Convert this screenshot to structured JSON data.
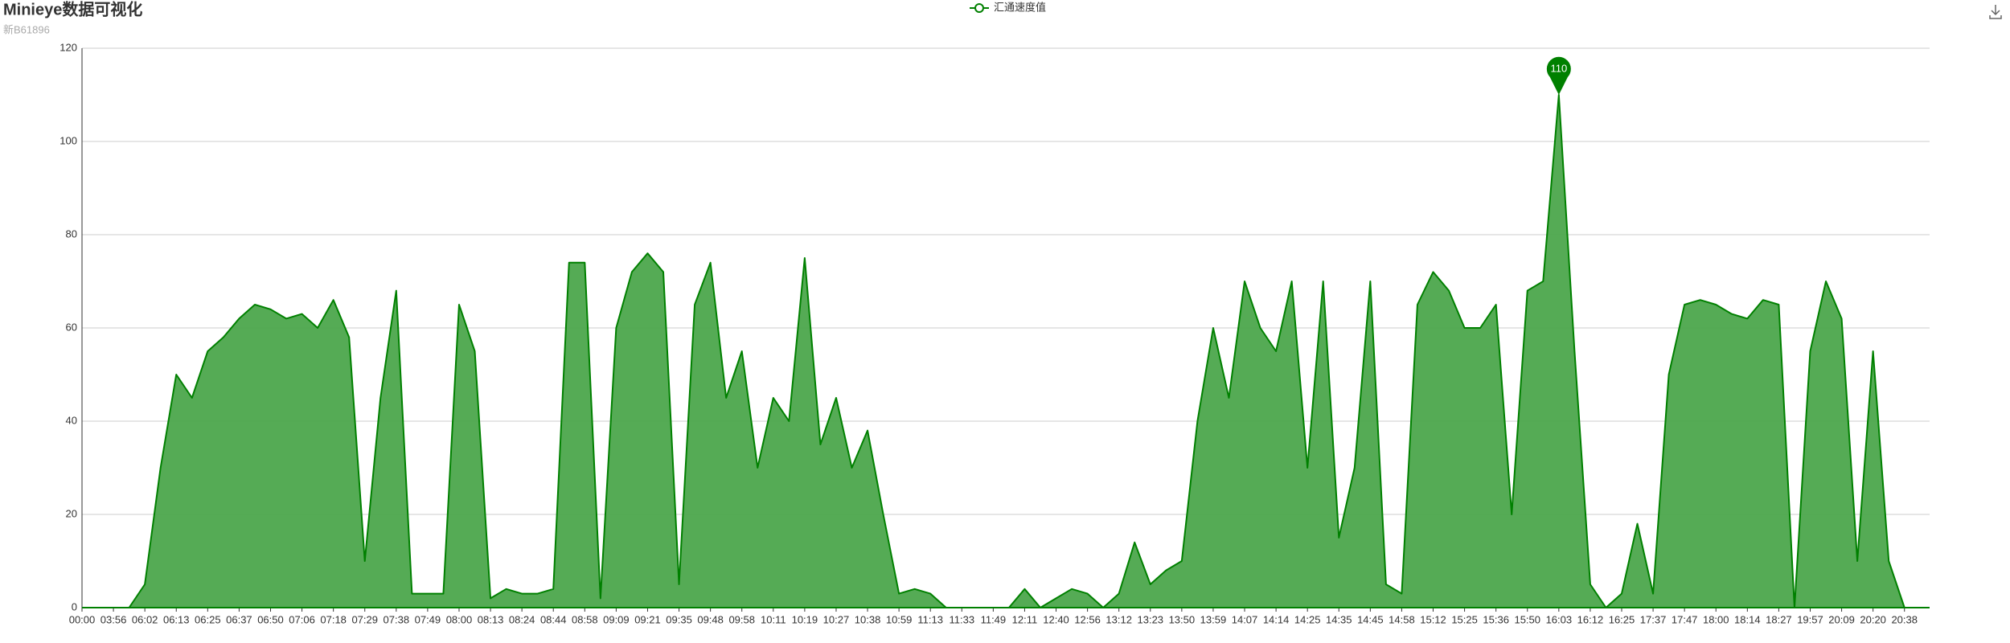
{
  "chart_data": {
    "type": "area",
    "title": "Minieye数据可视化",
    "subtitle": "新B61896",
    "categories": [
      "00:00",
      null,
      "03:56",
      null,
      "06:02",
      null,
      "06:13",
      null,
      "06:25",
      null,
      "06:37",
      null,
      "06:50",
      null,
      "07:06",
      null,
      "07:18",
      null,
      "07:29",
      null,
      "07:38",
      null,
      "07:49",
      null,
      "08:00",
      null,
      "08:13",
      null,
      "08:24",
      null,
      "08:44",
      null,
      "08:58",
      null,
      "09:09",
      null,
      "09:21",
      null,
      "09:35",
      null,
      "09:48",
      null,
      "09:58",
      null,
      "10:11",
      null,
      "10:19",
      null,
      "10:27",
      null,
      "10:38",
      null,
      "10:59",
      null,
      "11:13",
      null,
      "11:33",
      null,
      "11:49",
      null,
      "12:11",
      null,
      "12:40",
      null,
      "12:56",
      null,
      "13:12",
      null,
      "13:23",
      null,
      "13:50",
      null,
      "13:59",
      null,
      "14:07",
      null,
      "14:14",
      null,
      "14:25",
      null,
      "14:35",
      null,
      "14:45",
      null,
      "14:58",
      null,
      "15:12",
      null,
      "15:25",
      null,
      "15:36",
      null,
      "15:50",
      null,
      "16:03",
      null,
      "16:12",
      null,
      "16:25",
      null,
      "17:37",
      null,
      "17:47",
      null,
      "18:00",
      null,
      "18:14",
      null,
      "18:27",
      null,
      "19:57",
      null,
      "20:09",
      null,
      "20:20",
      null,
      "20:38",
      null
    ],
    "series": [
      {
        "name": "汇通速度值",
        "color": "#008000",
        "area_color": "#4ca64c",
        "values": [
          0,
          0,
          0,
          0,
          5,
          30,
          50,
          45,
          55,
          58,
          62,
          65,
          64,
          62,
          63,
          60,
          66,
          58,
          10,
          45,
          68,
          3,
          3,
          3,
          65,
          55,
          2,
          4,
          3,
          3,
          4,
          74,
          74,
          2,
          60,
          72,
          76,
          72,
          5,
          65,
          74,
          45,
          55,
          30,
          45,
          40,
          75,
          35,
          45,
          30,
          38,
          20,
          3,
          4,
          3,
          0,
          0,
          0,
          0,
          0,
          4,
          0,
          2,
          4,
          3,
          0,
          3,
          14,
          5,
          8,
          10,
          40,
          60,
          45,
          70,
          60,
          55,
          70,
          30,
          70,
          15,
          30,
          70,
          5,
          3,
          65,
          72,
          68,
          60,
          60,
          65,
          20,
          68,
          70,
          110,
          55,
          5,
          0,
          3,
          18,
          3,
          50,
          65,
          66,
          65,
          63,
          62,
          66,
          65,
          0,
          55,
          70,
          62,
          10,
          55,
          10,
          0,
          0
        ]
      }
    ],
    "ylim": [
      0,
      120
    ],
    "yticks": [
      0,
      20,
      40,
      60,
      80,
      100,
      120
    ],
    "grid": true,
    "legend": "top",
    "mark_max": true
  }
}
